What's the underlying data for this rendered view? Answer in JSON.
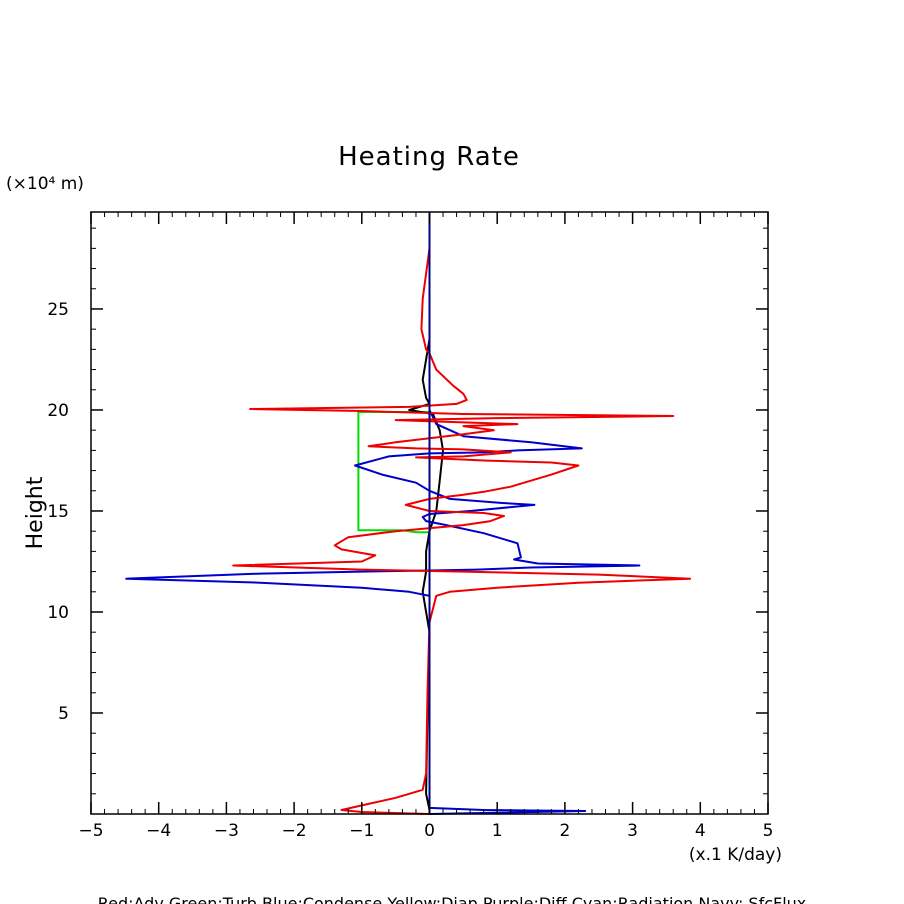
{
  "chart_data": {
    "type": "line",
    "title": "Heating Rate",
    "ylabel": "Height",
    "yunit": "(×10⁴ m)",
    "xunit": "(x.1 K/day)",
    "legend_text": "Red:Adv  Green:Turb  Blue:Condense  Yellow:Diap  Purple:Diff  Cyan:Radiation  Navy: SfcFlux",
    "xlim": [
      -5,
      5
    ],
    "ylim": [
      0,
      29.8
    ],
    "xticks": [
      -5,
      -4,
      -3,
      -2,
      -1,
      0,
      1,
      2,
      3,
      4,
      5
    ],
    "xtick_labels": [
      "−5",
      "−4",
      "−3",
      "−2",
      "−1",
      "0",
      "1",
      "2",
      "3",
      "4",
      "5"
    ],
    "yticks": [
      5,
      10,
      15,
      20,
      25
    ],
    "ytick_labels": [
      "5",
      "10",
      "15",
      "20",
      "25"
    ],
    "colors": {
      "red": "#ee0000",
      "green": "#00dd00",
      "blue": "#0000cc",
      "black": "#000000",
      "navy": "#000080"
    },
    "series": [
      {
        "color": "#00dd00",
        "points": [
          [
            0,
            20.2
          ],
          [
            0,
            19.9
          ],
          [
            -1.05,
            19.9
          ],
          [
            -1.05,
            14.05
          ],
          [
            -0.4,
            14.05
          ],
          [
            -0.2,
            13.95
          ],
          [
            0,
            13.95
          ]
        ]
      },
      {
        "color": "#000000",
        "points": [
          [
            0,
            29.8
          ],
          [
            0,
            23.5
          ],
          [
            -0.05,
            22.5
          ],
          [
            -0.1,
            21.5
          ],
          [
            -0.05,
            20.6
          ],
          [
            0,
            20.3
          ],
          [
            -0.3,
            20.0
          ],
          [
            0.05,
            19.8
          ],
          [
            0.15,
            19.0
          ],
          [
            0.2,
            18.0
          ],
          [
            0.15,
            16.5
          ],
          [
            0.1,
            15.0
          ],
          [
            0.05,
            14.5
          ],
          [
            0,
            14.0
          ],
          [
            -0.05,
            13.0
          ],
          [
            -0.05,
            12.0
          ],
          [
            -0.1,
            11.0
          ],
          [
            -0.05,
            10.0
          ],
          [
            0,
            9.0
          ],
          [
            -0.03,
            5.0
          ],
          [
            -0.05,
            1.0
          ],
          [
            0,
            0.2
          ],
          [
            0,
            0
          ]
        ]
      },
      {
        "color": "#0000cc",
        "points": [
          [
            0,
            29.8
          ],
          [
            0,
            20.5
          ],
          [
            0,
            20.0
          ],
          [
            0.1,
            19.3
          ],
          [
            0.5,
            18.7
          ],
          [
            1.5,
            18.4
          ],
          [
            2.25,
            18.1
          ],
          [
            1.3,
            18.0
          ],
          [
            0.8,
            17.9
          ],
          [
            0,
            17.85
          ],
          [
            -0.6,
            17.7
          ],
          [
            -1.1,
            17.25
          ],
          [
            -0.7,
            16.8
          ],
          [
            -0.2,
            16.4
          ],
          [
            0,
            16.0
          ],
          [
            0.3,
            15.6
          ],
          [
            1.05,
            15.4
          ],
          [
            1.55,
            15.3
          ],
          [
            0.6,
            15.0
          ],
          [
            0,
            14.85
          ],
          [
            -0.1,
            14.7
          ],
          [
            -0.05,
            14.5
          ],
          [
            0.25,
            14.3
          ],
          [
            0.8,
            13.9
          ],
          [
            1.3,
            13.4
          ],
          [
            1.35,
            12.7
          ],
          [
            1.25,
            12.6
          ],
          [
            1.6,
            12.4
          ],
          [
            3.1,
            12.3
          ],
          [
            1.5,
            12.2
          ],
          [
            0.7,
            12.1
          ],
          [
            -0.1,
            12.05
          ],
          [
            -1.0,
            12.0
          ],
          [
            -2.5,
            11.9
          ],
          [
            -4.48,
            11.65
          ],
          [
            -2.5,
            11.45
          ],
          [
            -1.0,
            11.2
          ],
          [
            -0.3,
            11.0
          ],
          [
            0,
            10.8
          ],
          [
            0,
            1.0
          ],
          [
            0,
            0.3
          ],
          [
            0.8,
            0.2
          ],
          [
            2.3,
            0.15
          ],
          [
            0,
            0
          ]
        ]
      },
      {
        "color": "#ee0000",
        "points": [
          [
            0,
            29.8
          ],
          [
            0,
            28.0
          ],
          [
            -0.1,
            25.5
          ],
          [
            -0.12,
            24.0
          ],
          [
            -0.05,
            23.0
          ],
          [
            0,
            22.8
          ],
          [
            0.1,
            22.0
          ],
          [
            0.35,
            21.2
          ],
          [
            0.5,
            20.8
          ],
          [
            0.55,
            20.5
          ],
          [
            0.4,
            20.3
          ],
          [
            -0.3,
            20.15
          ],
          [
            -2.65,
            20.05
          ],
          [
            -1.0,
            19.95
          ],
          [
            0.5,
            19.8
          ],
          [
            3.6,
            19.7
          ],
          [
            1.0,
            19.6
          ],
          [
            -0.5,
            19.5
          ],
          [
            1.3,
            19.3
          ],
          [
            0.5,
            19.2
          ],
          [
            0.95,
            19.0
          ],
          [
            0.5,
            18.8
          ],
          [
            -0.5,
            18.4
          ],
          [
            -0.9,
            18.2
          ],
          [
            -0.2,
            18.1
          ],
          [
            0.5,
            18.05
          ],
          [
            1.2,
            17.9
          ],
          [
            0.5,
            17.7
          ],
          [
            -0.2,
            17.65
          ],
          [
            0.8,
            17.5
          ],
          [
            1.8,
            17.4
          ],
          [
            2.2,
            17.25
          ],
          [
            1.8,
            16.8
          ],
          [
            1.2,
            16.2
          ],
          [
            0.8,
            15.95
          ],
          [
            0.5,
            15.8
          ],
          [
            0,
            15.6
          ],
          [
            -0.35,
            15.3
          ],
          [
            0,
            15.0
          ],
          [
            0.8,
            14.9
          ],
          [
            1.1,
            14.75
          ],
          [
            0.9,
            14.5
          ],
          [
            0.5,
            14.3
          ],
          [
            -0.5,
            14.0
          ],
          [
            -1.2,
            13.7
          ],
          [
            -1.4,
            13.3
          ],
          [
            -1.3,
            13.1
          ],
          [
            -0.8,
            12.8
          ],
          [
            -1.0,
            12.5
          ],
          [
            -2.9,
            12.3
          ],
          [
            -1.0,
            12.1
          ],
          [
            0.5,
            12.0
          ],
          [
            2.5,
            11.85
          ],
          [
            3.85,
            11.65
          ],
          [
            2.2,
            11.45
          ],
          [
            1.0,
            11.2
          ],
          [
            0.3,
            11.0
          ],
          [
            0.1,
            10.8
          ],
          [
            0,
            9.5
          ],
          [
            -0.03,
            6.0
          ],
          [
            -0.05,
            2.0
          ],
          [
            -0.1,
            1.2
          ],
          [
            -0.5,
            0.8
          ],
          [
            -0.9,
            0.5
          ],
          [
            -1.3,
            0.2
          ],
          [
            -1.0,
            0.1
          ],
          [
            0,
            0
          ]
        ]
      },
      {
        "color": "#000080",
        "points": [
          [
            0,
            29.8
          ],
          [
            0,
            0
          ]
        ]
      }
    ]
  }
}
